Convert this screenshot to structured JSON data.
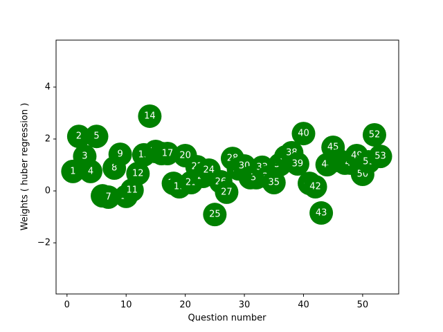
{
  "chart_data": {
    "type": "scatter",
    "xlabel": "Question number",
    "ylabel": "Weights ( huber regression )",
    "x": [
      1,
      2,
      3,
      4,
      5,
      6,
      7,
      8,
      9,
      10,
      11,
      12,
      13,
      14,
      15,
      16,
      17,
      18,
      19,
      20,
      21,
      22,
      23,
      24,
      25,
      26,
      27,
      28,
      29,
      30,
      31,
      32,
      33,
      34,
      35,
      36,
      37,
      38,
      39,
      40,
      41,
      42,
      43,
      44,
      45,
      46,
      47,
      48,
      49,
      50,
      51,
      52,
      53
    ],
    "values": [
      0.75,
      2.1,
      1.33,
      0.75,
      2.1,
      -0.19,
      -0.24,
      0.88,
      1.41,
      -0.21,
      0.03,
      0.67,
      1.39,
      2.88,
      1.52,
      1.44,
      1.44,
      0.29,
      0.16,
      1.36,
      0.32,
      0.93,
      0.56,
      0.8,
      -0.91,
      0.35,
      -0.05,
      1.25,
      0.85,
      0.96,
      0.51,
      0.51,
      0.91,
      0.53,
      0.32,
      1.01,
      1.31,
      1.47,
      1.04,
      2.21,
      0.29,
      0.16,
      -0.85,
      1.01,
      1.68,
      1.17,
      1.07,
      1.07,
      1.36,
      0.64,
      1.12,
      2.16,
      1.33
    ],
    "color": "#008000",
    "label_color": "#ffffff",
    "xlim": [
      -1.85,
      56.1
    ],
    "xticks": [
      0,
      10,
      20,
      30,
      40,
      50
    ],
    "ylim": [
      -3.97,
      5.81
    ],
    "yticks": [
      {
        "value": -2,
        "label": "−2"
      },
      0,
      2,
      4
    ]
  }
}
